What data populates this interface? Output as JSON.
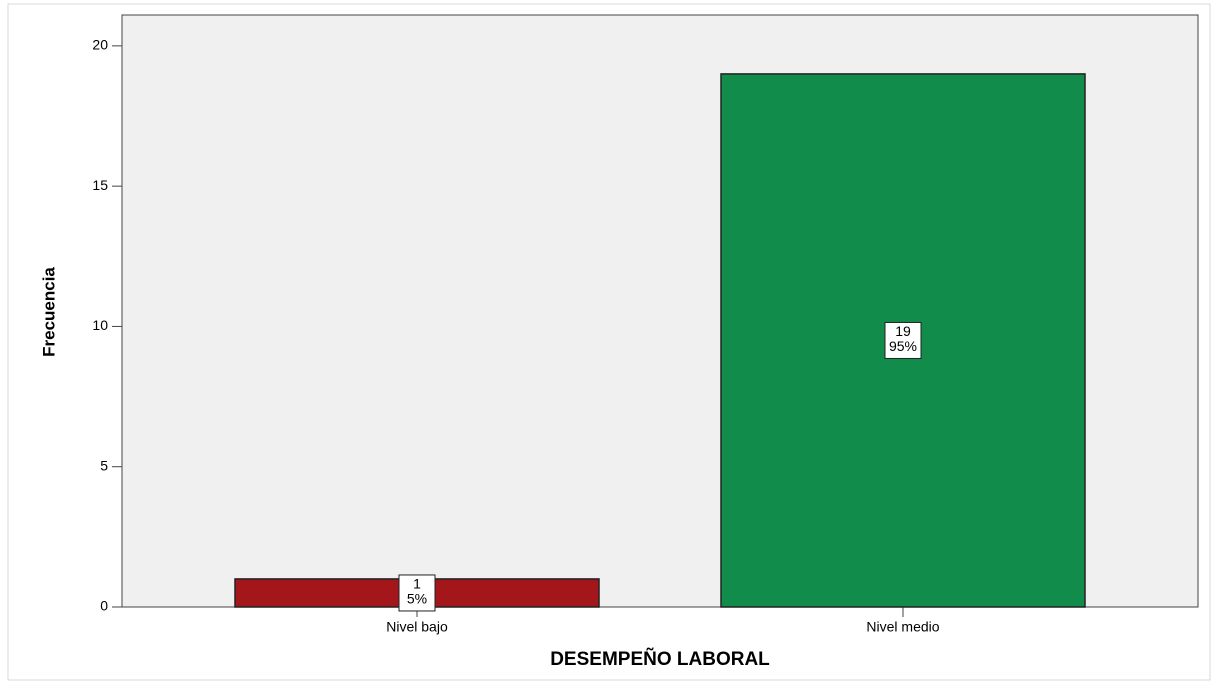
{
  "chart_data": {
    "type": "bar",
    "x_label": "DESEMPEÑO LABORAL",
    "y_label": "Frecuencia",
    "categories": [
      "Nivel bajo",
      "Nivel medio"
    ],
    "values": [
      1,
      19
    ],
    "percent_labels": [
      "5%",
      "95%"
    ],
    "colors": [
      "#a3171b",
      "#118c4b"
    ],
    "ylim": [
      0,
      21.1
    ],
    "yticks": [
      0,
      5,
      10,
      15,
      20
    ],
    "grid": false
  }
}
